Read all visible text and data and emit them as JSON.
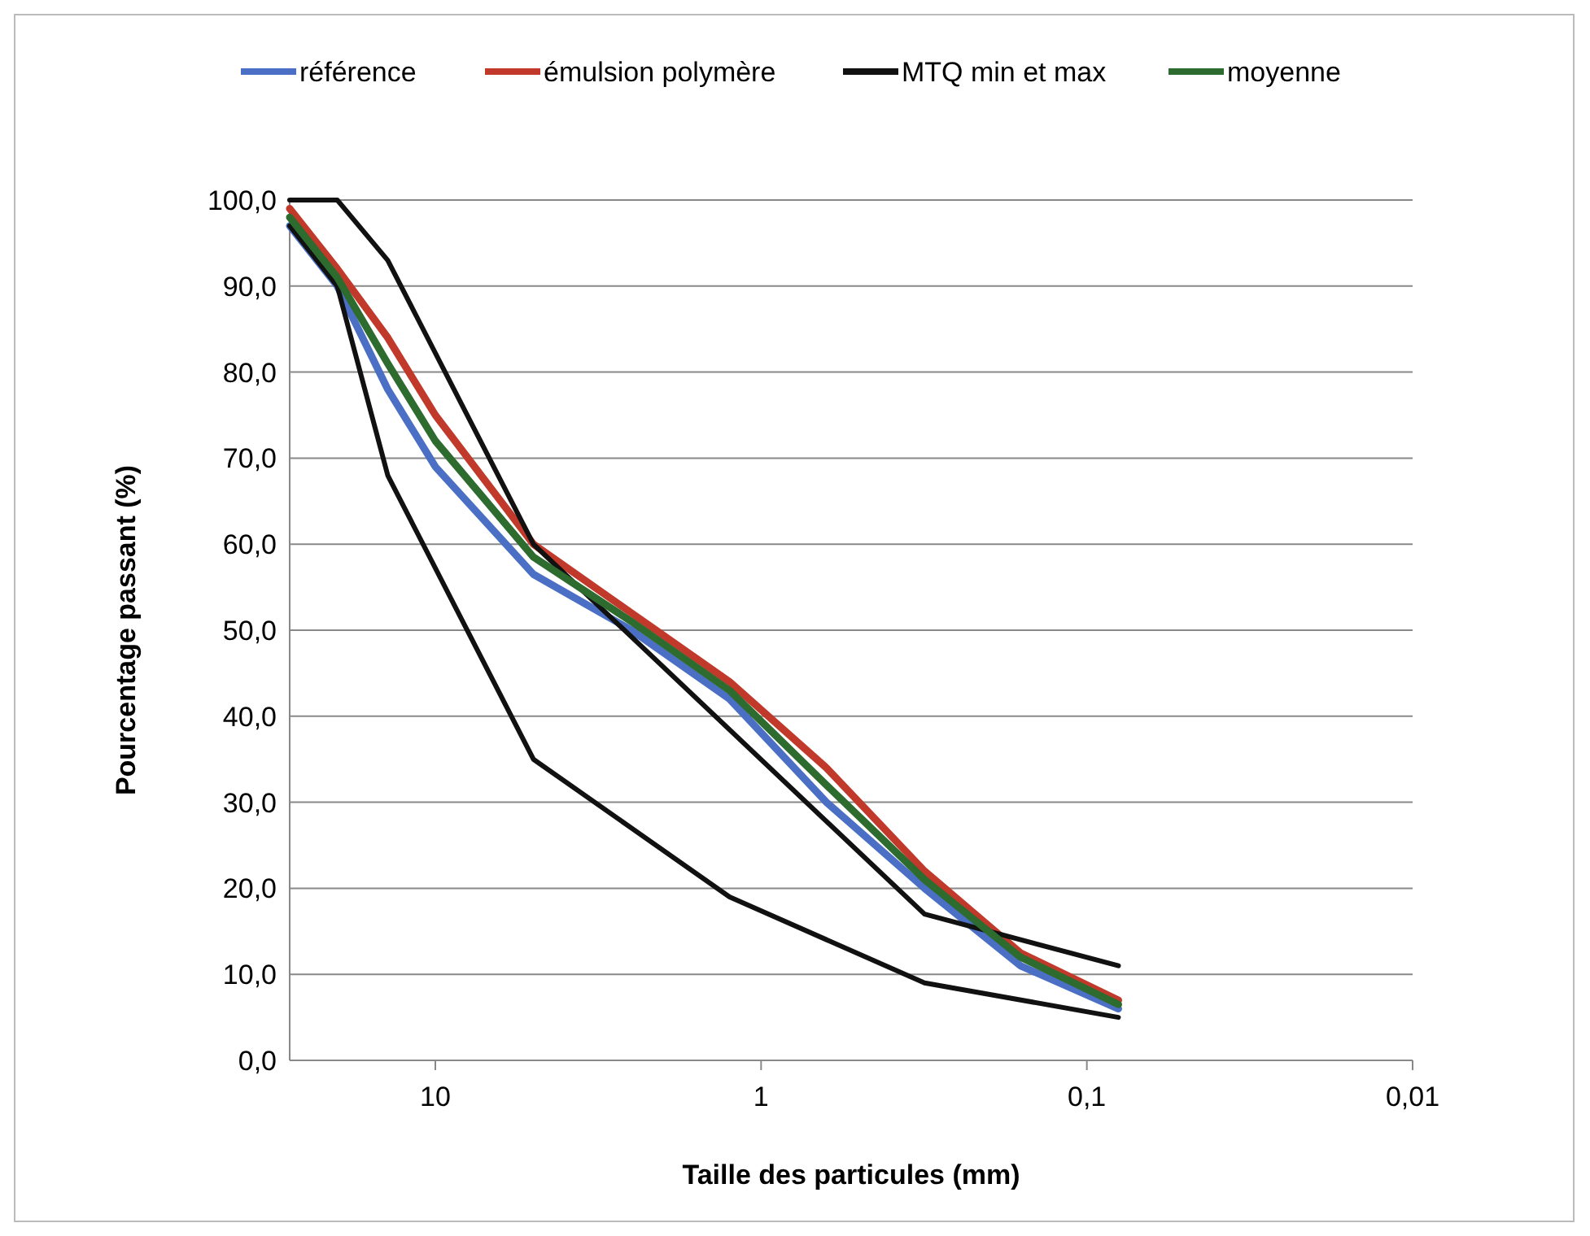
{
  "chart_data": {
    "type": "line",
    "xlabel": "Taille des particules (mm)",
    "ylabel": "Pourcentage passant (%)",
    "log": "x",
    "xlim": [
      28,
      0.01
    ],
    "ylim": [
      0,
      100
    ],
    "xticks": [
      10,
      1,
      {
        "value": 0.1,
        "label": "0,1"
      },
      {
        "value": 0.01,
        "label": "0,01"
      }
    ],
    "yticks": [
      {
        "value": 0,
        "label": "0,0"
      },
      {
        "value": 10,
        "label": "10,0"
      },
      {
        "value": 20,
        "label": "20,0"
      },
      {
        "value": 30,
        "label": "30,0"
      },
      {
        "value": 40,
        "label": "40,0"
      },
      {
        "value": 50,
        "label": "50,0"
      },
      {
        "value": 60,
        "label": "60,0"
      },
      {
        "value": 70,
        "label": "70,0"
      },
      {
        "value": 80,
        "label": "80,0"
      },
      {
        "value": 90,
        "label": "90,0"
      },
      {
        "value": 100,
        "label": "100,0"
      }
    ],
    "grid": "y",
    "legend": "top",
    "marker": "none",
    "line_style": "solid",
    "series": [
      {
        "name": "référence",
        "color": "#4a6fc4",
        "x": [
          28,
          20,
          14,
          10,
          5,
          2.5,
          1.25,
          0.63,
          0.315,
          0.16,
          0.08
        ],
        "values": [
          97,
          90,
          78,
          69,
          56.5,
          50,
          42,
          30,
          20,
          11,
          6
        ]
      },
      {
        "name": "émulsion polymère",
        "color": "#c0392b",
        "x": [
          28,
          20,
          14,
          10,
          5,
          2.5,
          1.25,
          0.63,
          0.315,
          0.16,
          0.08
        ],
        "values": [
          99,
          92,
          84,
          75,
          60,
          52,
          44,
          34,
          22,
          12.5,
          7
        ]
      },
      {
        "name": "MTQ min et max",
        "color": "#111111",
        "x": [
          28,
          20,
          14,
          5,
          0.315,
          0.08
        ],
        "values": [
          100,
          100,
          93,
          60,
          17,
          11
        ]
      },
      {
        "color": "#111111",
        "x": [
          28,
          20,
          14,
          5,
          1.25,
          0.315,
          0.08
        ],
        "values": [
          97,
          90,
          68,
          35,
          19,
          9,
          5
        ]
      },
      {
        "name": "moyenne",
        "color": "#2e6b2e",
        "x": [
          28,
          20,
          14,
          10,
          5,
          2.5,
          1.25,
          0.63,
          0.315,
          0.16,
          0.08
        ],
        "values": [
          98,
          91,
          81,
          72,
          58.5,
          51,
          43,
          32,
          21,
          12,
          6.5
        ]
      }
    ]
  }
}
